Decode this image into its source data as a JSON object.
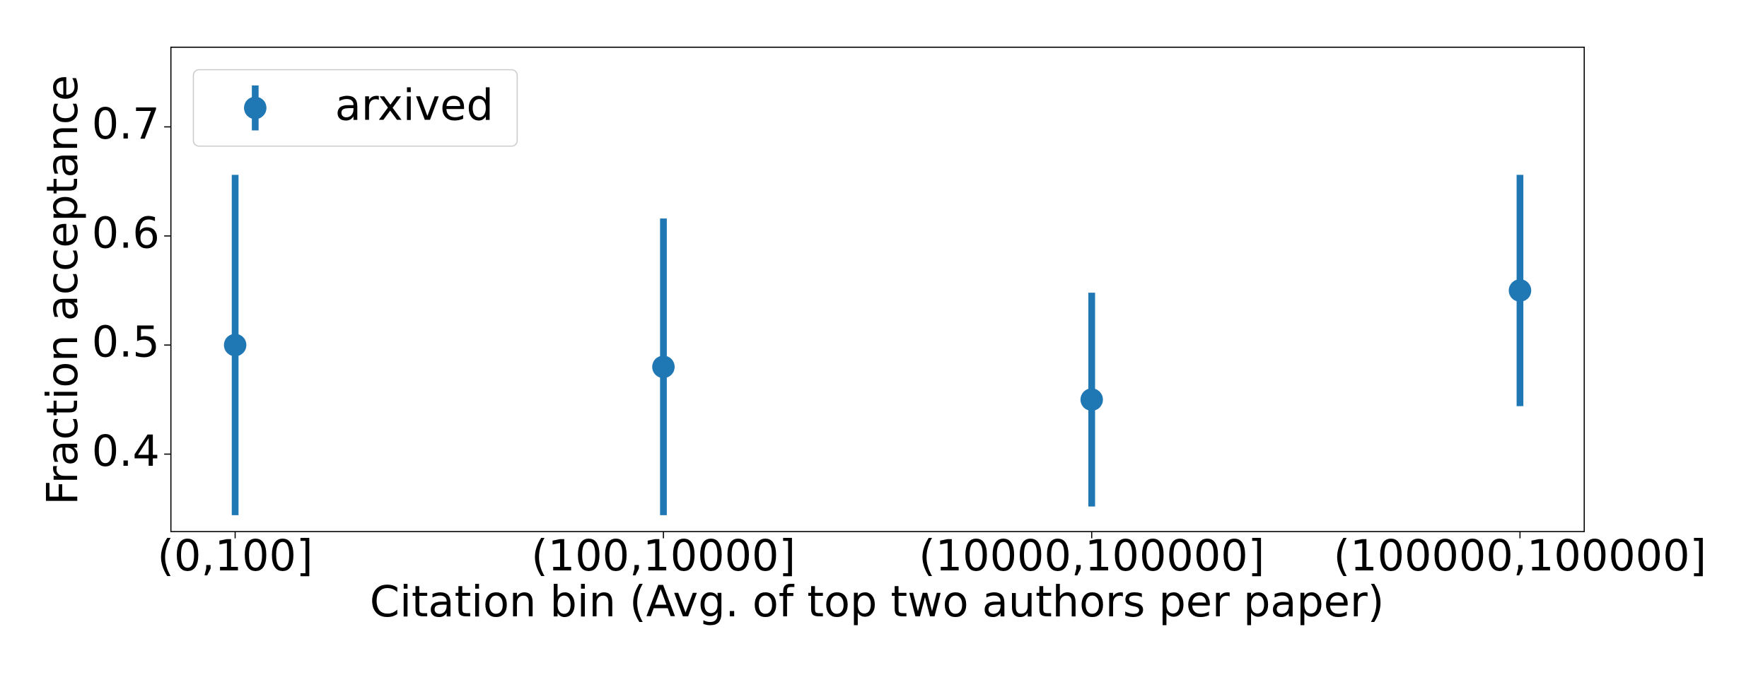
{
  "chart_data": {
    "type": "errorbar",
    "xlabel": "Citation bin (Avg. of top two authors per paper)",
    "ylabel": "Fraction acceptance",
    "categories": [
      "(0,100]",
      "(100,10000]",
      "(10000,100000]",
      "(100000,100000]"
    ],
    "series": [
      {
        "name": "arxived",
        "color": "#1f77b4",
        "values": [
          0.5,
          0.48,
          0.45,
          0.55
        ],
        "errors": [
          0.156,
          0.136,
          0.098,
          0.106
        ]
      }
    ],
    "ylim": [
      0.329,
      0.773
    ],
    "yticks": [
      0.4,
      0.5,
      0.6,
      0.7
    ],
    "legend": "upper left"
  }
}
